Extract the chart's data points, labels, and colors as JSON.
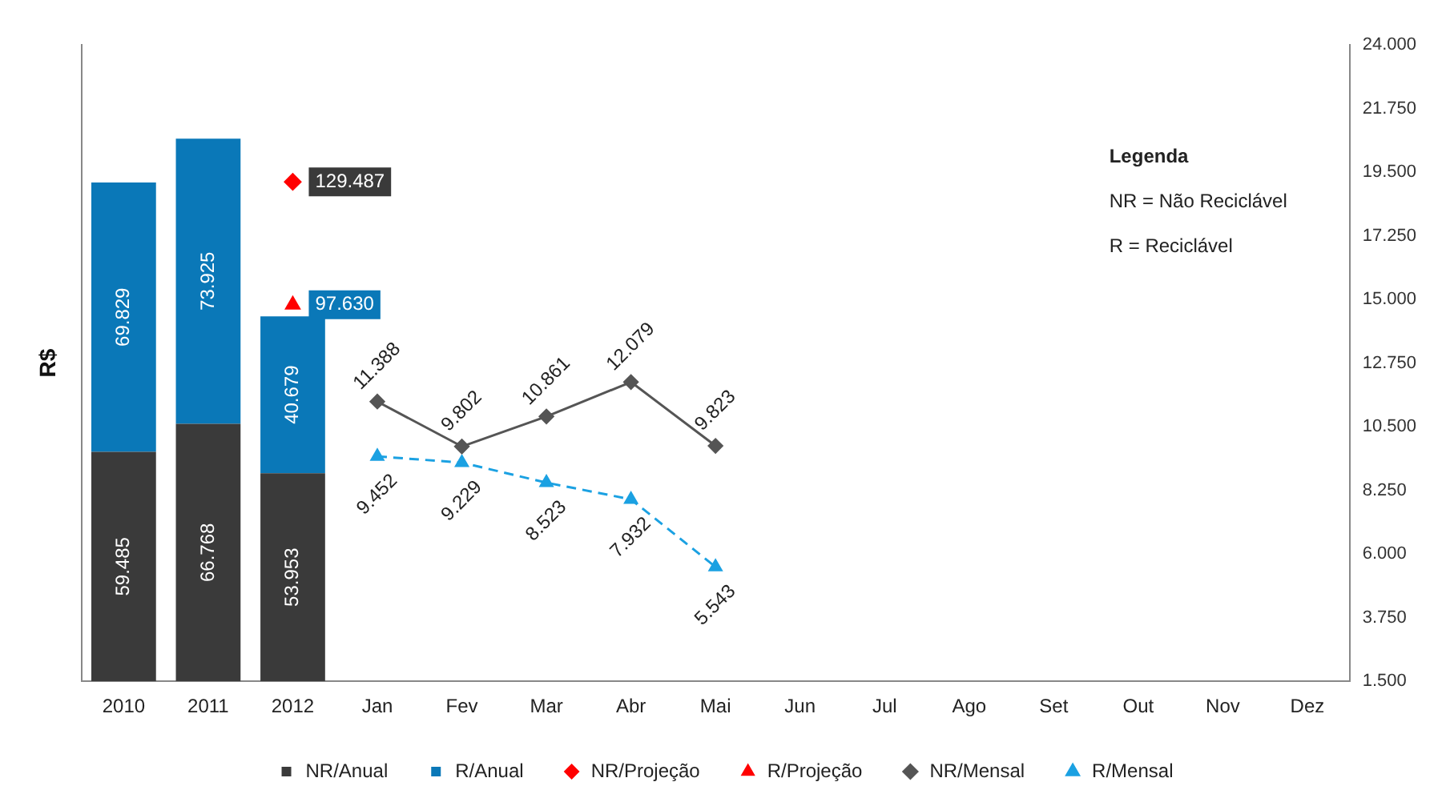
{
  "chart_data": {
    "type": "bar",
    "stacked": true,
    "ylabel": "R$",
    "categories": [
      "2010",
      "2011",
      "2012",
      "Jan",
      "Fev",
      "Mar",
      "Abr",
      "Mai",
      "Jun",
      "Jul",
      "Ago",
      "Set",
      "Out",
      "Nov",
      "Dez"
    ],
    "ylim": [
      0,
      165000
    ],
    "y2lim": [
      1500,
      24000
    ],
    "y2ticks": [
      {
        "value": 1500,
        "label": "1.500"
      },
      {
        "value": 3750,
        "label": "3.750"
      },
      {
        "value": 6000,
        "label": "6.000"
      },
      {
        "value": 8250,
        "label": "8.250"
      },
      {
        "value": 10500,
        "label": "10.500"
      },
      {
        "value": 12750,
        "label": "12.750"
      },
      {
        "value": 15000,
        "label": "15.000"
      },
      {
        "value": 17250,
        "label": "17.250"
      },
      {
        "value": 19500,
        "label": "19.500"
      },
      {
        "value": 21750,
        "label": "21.750"
      },
      {
        "value": 24000,
        "label": "24.000"
      }
    ],
    "series": [
      {
        "name": "NR/Anual",
        "color": "#3a3a3a",
        "values": [
          59485,
          66768,
          53953,
          null,
          null,
          null,
          null,
          null,
          null,
          null,
          null,
          null,
          null,
          null,
          null
        ],
        "value_labels": [
          "59.485",
          "66.768",
          "53.953",
          null,
          null,
          null,
          null,
          null,
          null,
          null,
          null,
          null,
          null,
          null,
          null
        ]
      },
      {
        "name": "R/Anual",
        "color": "#0a78b8",
        "values": [
          69829,
          73925,
          40679,
          null,
          null,
          null,
          null,
          null,
          null,
          null,
          null,
          null,
          null,
          null,
          null
        ],
        "value_labels": [
          "69.829",
          "73.925",
          "40.679",
          null,
          null,
          null,
          null,
          null,
          null,
          null,
          null,
          null,
          null,
          null,
          null
        ]
      },
      {
        "name": "NR/Projeção",
        "type": "scatter",
        "color": "#ff0000",
        "marker": "diamond",
        "values": [
          null,
          null,
          129487,
          null,
          null,
          null,
          null,
          null,
          null,
          null,
          null,
          null,
          null,
          null,
          null
        ],
        "value_labels": [
          null,
          null,
          "129.487",
          null,
          null,
          null,
          null,
          null,
          null,
          null,
          null,
          null,
          null,
          null,
          null
        ]
      },
      {
        "name": "R/Projeção",
        "type": "scatter",
        "color": "#ff0000",
        "marker": "triangle",
        "values": [
          null,
          null,
          97630,
          null,
          null,
          null,
          null,
          null,
          null,
          null,
          null,
          null,
          null,
          null,
          null
        ],
        "value_labels": [
          null,
          null,
          "97.630",
          null,
          null,
          null,
          null,
          null,
          null,
          null,
          null,
          null,
          null,
          null,
          null
        ]
      },
      {
        "name": "NR/Mensal",
        "type": "line",
        "axis": "y2",
        "color": "#555555",
        "marker": "diamond",
        "line_style": "solid",
        "values": [
          null,
          null,
          null,
          11388,
          9802,
          10861,
          12079,
          9823,
          null,
          null,
          null,
          null,
          null,
          null,
          null
        ],
        "value_labels": [
          null,
          null,
          null,
          "11.388",
          "9.802",
          "10.861",
          "12.079",
          "9.823",
          null,
          null,
          null,
          null,
          null,
          null,
          null
        ]
      },
      {
        "name": "R/Mensal",
        "type": "line",
        "axis": "y2",
        "color": "#1ba1e2",
        "marker": "triangle",
        "line_style": "dashed",
        "values": [
          null,
          null,
          null,
          9452,
          9229,
          8523,
          7932,
          5543,
          null,
          null,
          null,
          null,
          null,
          null,
          null
        ],
        "value_labels": [
          null,
          null,
          null,
          "9.452",
          "9.229",
          "8.523",
          "7.932",
          "5.543",
          null,
          null,
          null,
          null,
          null,
          null,
          null
        ]
      }
    ],
    "annotations": [
      "Legenda",
      "NR = Não Reciclável",
      "R = Reciclável"
    ],
    "legend": "bottom",
    "grid": false
  }
}
